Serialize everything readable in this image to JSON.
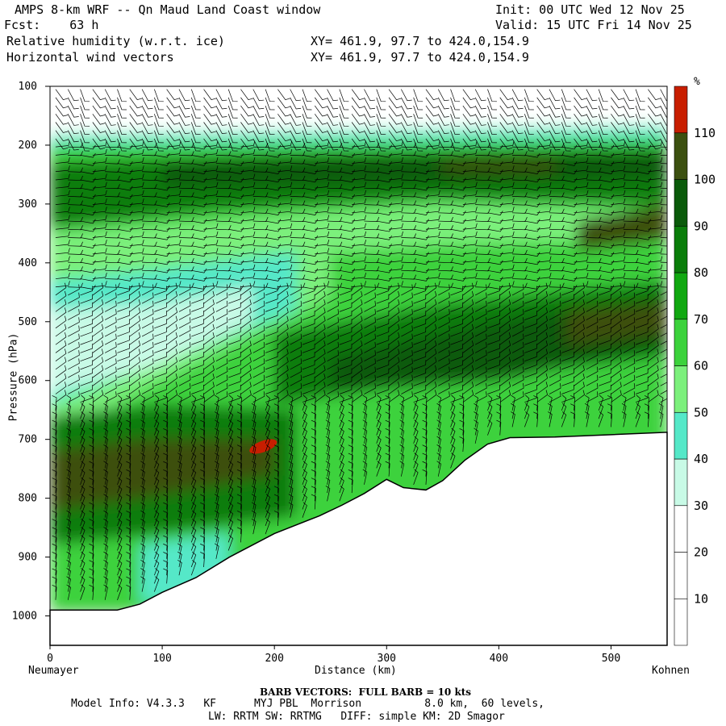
{
  "header": {
    "title": "AMPS 8-km WRF -- Qn Maud Land Coast window",
    "fcst_label": "Fcst:",
    "fcst_value": "63 h",
    "field1": "Relative humidity (w.r.t. ice)",
    "field2": "Horizontal wind vectors",
    "xy1": "XY= 461.9, 97.7 to 424.0,154.9",
    "xy2": "XY= 461.9, 97.7 to 424.0,154.9",
    "init": "Init: 00 UTC Wed 12 Nov 25",
    "valid": "Valid: 15 UTC Fri 14 Nov 25"
  },
  "chart_data": {
    "type": "heatmap",
    "title": "Relative humidity (w.r.t. ice) and horizontal wind vectors cross-section",
    "xlabel": "Distance (km)",
    "ylabel": "Pressure (hPa)",
    "xlim": [
      0,
      550
    ],
    "ylim": [
      1050,
      100
    ],
    "x_ticks": [
      "0",
      "100",
      "200",
      "300",
      "400",
      "500"
    ],
    "y_ticks": [
      "100",
      "200",
      "300",
      "400",
      "500",
      "600",
      "700",
      "800",
      "900",
      "1000"
    ],
    "x_start_label": "Neumayer",
    "x_end_label": "Kohnen",
    "colorbar": {
      "unit": "%",
      "levels": [
        10,
        20,
        30,
        40,
        50,
        60,
        70,
        80,
        90,
        100,
        110
      ],
      "colors": [
        "#ffffff",
        "#ffffff",
        "#ffffff",
        "#c8fae6",
        "#55e8c8",
        "#7cf07c",
        "#3cd23c",
        "#11a811",
        "#0a7d0a",
        "#0a5a0a",
        "#3c5010",
        "#c81e00"
      ]
    },
    "terrain_profile": [
      [
        0,
        990
      ],
      [
        20,
        990
      ],
      [
        60,
        990
      ],
      [
        80,
        980
      ],
      [
        100,
        960
      ],
      [
        130,
        935
      ],
      [
        160,
        900
      ],
      [
        200,
        860
      ],
      [
        240,
        830
      ],
      [
        260,
        812
      ],
      [
        280,
        792
      ],
      [
        300,
        768
      ],
      [
        315,
        782
      ],
      [
        335,
        786
      ],
      [
        350,
        770
      ],
      [
        370,
        735
      ],
      [
        390,
        708
      ],
      [
        410,
        697
      ],
      [
        450,
        696
      ],
      [
        500,
        692
      ],
      [
        550,
        688
      ]
    ],
    "rh_fields": [
      {
        "label": "moist layer 200-300 hPa",
        "rh_percent": 95
      },
      {
        "label": "dry band 450-650 hPa (near coast)",
        "rh_percent": 35
      },
      {
        "label": "moist band 650-800 hPa",
        "rh_percent": 100
      },
      {
        "label": "supersaturated pocket near 190 km, 710 hPa",
        "rh_percent": 112
      }
    ],
    "barb_note": "BARB VECTORS:  FULL BARB = 10 kts"
  },
  "footer": {
    "barb_title": "BARB VECTORS:  FULL BARB = 10 kts",
    "model_line": "Model Info: V4.3.3   KF      MYJ PBL  Morrison          8.0 km,  60 levels,",
    "phys_line": "LW: RRTM SW: RRTMG   DIFF: simple KM: 2D Smagor"
  }
}
